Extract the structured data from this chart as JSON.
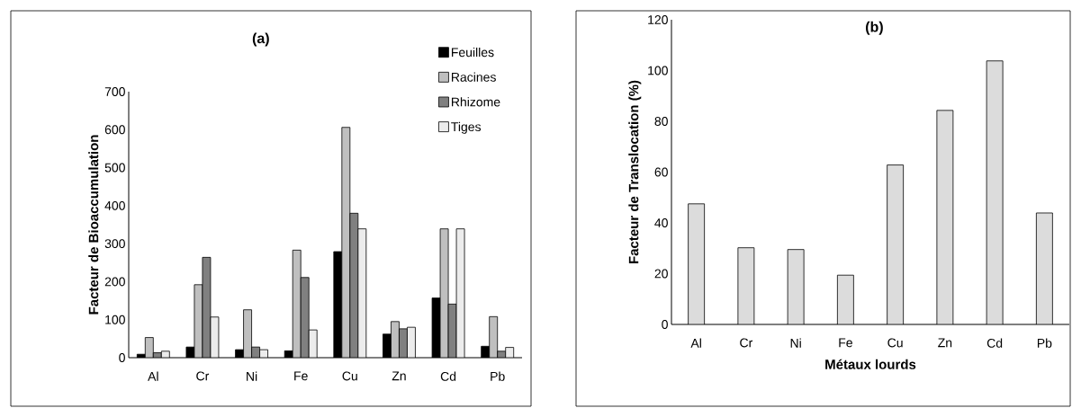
{
  "chart_data": [
    {
      "type": "bar",
      "title": "(a)",
      "ylabel": "Facteur de Bioaccumulation",
      "categories": [
        "Al",
        "Cr",
        "Ni",
        "Fe",
        "Cu",
        "Zn",
        "Cd",
        "Pb"
      ],
      "series": [
        {
          "name": "Feuilles",
          "color": "#000000",
          "values": [
            9,
            28,
            21,
            18,
            279,
            62,
            157,
            30
          ]
        },
        {
          "name": "Racines",
          "color": "#bfbfbf",
          "values": [
            53,
            192,
            126,
            283,
            606,
            95,
            339,
            108
          ]
        },
        {
          "name": "Rhizome",
          "color": "#808080",
          "values": [
            13,
            264,
            28,
            211,
            380,
            76,
            141,
            17
          ]
        },
        {
          "name": "Tiges",
          "color": "#ececec",
          "values": [
            17,
            107,
            21,
            73,
            339,
            80,
            339,
            27
          ]
        }
      ],
      "ylim": [
        0,
        700
      ],
      "yticks": [
        0,
        100,
        200,
        300,
        400,
        500,
        600,
        700
      ],
      "legend": "top right"
    },
    {
      "type": "bar",
      "title": "(b)",
      "xlabel": "Métaux lourds",
      "ylabel": "Facteur de Translocation (%)",
      "categories": [
        "Al",
        "Cr",
        "Ni",
        "Fe",
        "Cu",
        "Zn",
        "Cd",
        "Pb"
      ],
      "values": [
        47.5,
        30.2,
        29.5,
        19.4,
        62.8,
        84.3,
        103.8,
        43.9
      ],
      "color": "#dcdcdc",
      "ylim": [
        0,
        120
      ],
      "yticks": [
        0,
        20,
        40,
        60,
        80,
        100,
        120
      ]
    }
  ]
}
